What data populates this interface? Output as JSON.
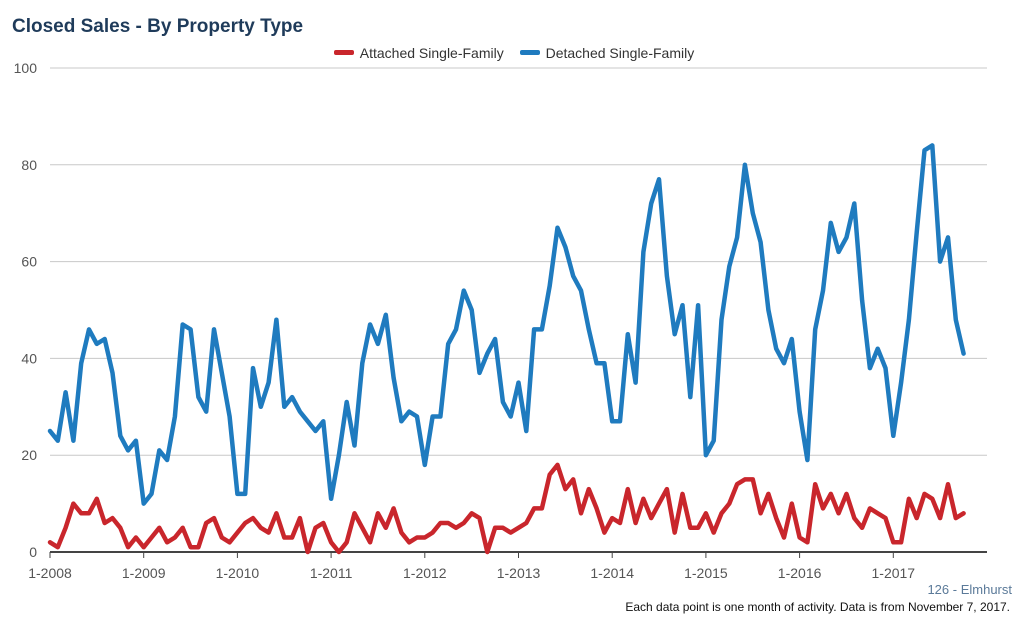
{
  "title": "Closed Sales - By Property Type",
  "footer": {
    "area": "126 - Elmhurst",
    "note": "Each data point is one month of activity. Data is from November 7, 2017."
  },
  "chart_data": {
    "type": "line",
    "ylim": [
      0,
      100
    ],
    "yticks": [
      0,
      20,
      40,
      60,
      80,
      100
    ],
    "xticks": [
      "1-2008",
      "1-2009",
      "1-2010",
      "1-2011",
      "1-2012",
      "1-2013",
      "1-2014",
      "1-2015",
      "1-2016",
      "1-2017"
    ],
    "x_start": "2008-01",
    "grid": true,
    "legend_position": "top-center",
    "series": [
      {
        "name": "Attached Single-Family",
        "color": "#c9262c",
        "values": [
          2,
          1,
          5,
          10,
          8,
          8,
          11,
          6,
          7,
          5,
          1,
          3,
          1,
          3,
          5,
          2,
          3,
          5,
          1,
          1,
          6,
          7,
          3,
          2,
          4,
          6,
          7,
          5,
          4,
          8,
          3,
          3,
          7,
          0,
          5,
          6,
          2,
          0,
          2,
          8,
          5,
          2,
          8,
          5,
          9,
          4,
          2,
          3,
          3,
          4,
          6,
          6,
          5,
          6,
          8,
          7,
          0,
          5,
          5,
          4,
          5,
          6,
          9,
          9,
          16,
          18,
          13,
          15,
          8,
          13,
          9,
          4,
          7,
          6,
          13,
          6,
          11,
          7,
          10,
          13,
          4,
          12,
          5,
          5,
          8,
          4,
          8,
          10,
          14,
          15,
          15,
          8,
          12,
          7,
          3,
          10,
          3,
          2,
          14,
          9,
          12,
          8,
          12,
          7,
          5,
          9,
          8,
          7,
          2,
          2,
          11,
          7,
          12,
          11,
          7,
          14,
          7,
          8
        ]
      },
      {
        "name": "Detached Single-Family",
        "color": "#1f7bbf",
        "values": [
          25,
          23,
          33,
          23,
          39,
          46,
          43,
          44,
          37,
          24,
          21,
          23,
          10,
          12,
          21,
          19,
          28,
          47,
          46,
          32,
          29,
          46,
          37,
          28,
          12,
          12,
          38,
          30,
          35,
          48,
          30,
          32,
          29,
          27,
          25,
          27,
          11,
          20,
          31,
          22,
          39,
          47,
          43,
          49,
          36,
          27,
          29,
          28,
          18,
          28,
          28,
          43,
          46,
          54,
          50,
          37,
          41,
          44,
          31,
          28,
          35,
          25,
          46,
          46,
          55,
          67,
          63,
          57,
          54,
          46,
          39,
          39,
          27,
          27,
          45,
          35,
          62,
          72,
          77,
          57,
          45,
          51,
          32,
          51,
          20,
          23,
          48,
          59,
          65,
          80,
          70,
          64,
          50,
          42,
          39,
          44,
          29,
          19,
          46,
          54,
          68,
          62,
          65,
          72,
          52,
          38,
          42,
          38,
          24,
          35,
          48,
          66,
          83,
          84,
          60,
          65,
          48,
          41
        ]
      }
    ]
  }
}
